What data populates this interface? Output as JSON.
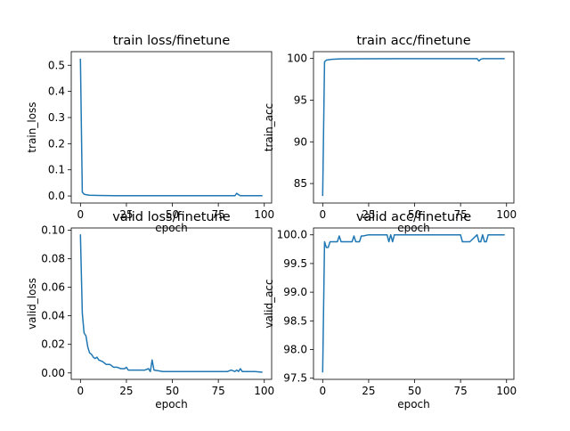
{
  "chart_data": [
    {
      "type": "line",
      "title": "train loss/finetune",
      "xlabel": "epoch",
      "ylabel": "train_loss",
      "xlim": [
        -5,
        104
      ],
      "ylim": [
        -0.027,
        0.552
      ],
      "xticks": [
        0,
        25,
        50,
        75,
        100
      ],
      "yticks": [
        0.0,
        0.1,
        0.2,
        0.3,
        0.4,
        0.5
      ],
      "ytick_labels": [
        "0.0",
        "0.1",
        "0.2",
        "0.3",
        "0.4",
        "0.5"
      ],
      "series": [
        {
          "name": "train_loss",
          "color": "#1f77b4",
          "x": [
            0,
            1,
            2,
            3,
            5,
            10,
            20,
            40,
            60,
            80,
            84,
            85,
            86,
            87,
            90,
            99
          ],
          "y": [
            0.525,
            0.015,
            0.007,
            0.005,
            0.003,
            0.002,
            0.001,
            0.001,
            0.001,
            0.001,
            0.001,
            0.01,
            0.005,
            0.001,
            0.001,
            0.001
          ]
        }
      ]
    },
    {
      "type": "line",
      "title": "train acc/finetune",
      "xlabel": "epoch",
      "ylabel": "train_acc",
      "xlim": [
        -5,
        104
      ],
      "ylim": [
        82.66,
        100.82
      ],
      "xticks": [
        0,
        25,
        50,
        75,
        100
      ],
      "yticks": [
        85,
        90,
        95,
        100
      ],
      "ytick_labels": [
        "85",
        "90",
        "95",
        "100"
      ],
      "series": [
        {
          "name": "train_acc",
          "color": "#1f77b4",
          "x": [
            0,
            1,
            2,
            3,
            5,
            10,
            20,
            40,
            60,
            80,
            84,
            85,
            86,
            87,
            90,
            99
          ],
          "y": [
            83.5,
            99.6,
            99.8,
            99.85,
            99.9,
            99.95,
            99.97,
            99.98,
            99.98,
            99.98,
            99.98,
            99.7,
            99.9,
            99.98,
            99.98,
            99.98
          ]
        }
      ]
    },
    {
      "type": "line",
      "title": "valid loss/finetune",
      "xlabel": "epoch",
      "ylabel": "valid_loss",
      "xlim": [
        -5,
        104
      ],
      "ylim": [
        -0.0045,
        0.1015
      ],
      "xticks": [
        0,
        25,
        50,
        75,
        100
      ],
      "yticks": [
        0.0,
        0.02,
        0.04,
        0.06,
        0.08,
        0.1
      ],
      "ytick_labels": [
        "0.00",
        "0.02",
        "0.04",
        "0.06",
        "0.08",
        "0.10"
      ],
      "series": [
        {
          "name": "valid_loss",
          "color": "#1f77b4",
          "x": [
            0,
            1,
            2,
            3,
            4,
            5,
            6,
            7,
            8,
            9,
            10,
            12,
            14,
            16,
            18,
            20,
            22,
            24,
            25,
            26,
            28,
            30,
            35,
            37,
            38,
            39,
            40,
            45,
            50,
            60,
            70,
            75,
            80,
            82,
            84,
            85,
            86,
            87,
            88,
            90,
            95,
            99
          ],
          "y": [
            0.097,
            0.042,
            0.028,
            0.026,
            0.018,
            0.014,
            0.013,
            0.011,
            0.01,
            0.011,
            0.009,
            0.008,
            0.006,
            0.006,
            0.004,
            0.004,
            0.003,
            0.003,
            0.004,
            0.002,
            0.002,
            0.002,
            0.002,
            0.003,
            0.001,
            0.009,
            0.002,
            0.001,
            0.001,
            0.001,
            0.001,
            0.001,
            0.001,
            0.002,
            0.001,
            0.002,
            0.001,
            0.003,
            0.001,
            0.001,
            0.001,
            0.0005
          ]
        }
      ]
    },
    {
      "type": "line",
      "title": "valid acc/finetune",
      "xlabel": "epoch",
      "ylabel": "valid_acc",
      "xlim": [
        -5,
        104
      ],
      "ylim": [
        97.48,
        100.12
      ],
      "xticks": [
        0,
        25,
        50,
        75,
        100
      ],
      "yticks": [
        97.5,
        98.0,
        98.5,
        99.0,
        99.5,
        100.0
      ],
      "ytick_labels": [
        "97.5",
        "98.0",
        "98.5",
        "99.0",
        "99.5",
        "100.0"
      ],
      "series": [
        {
          "name": "valid_acc",
          "color": "#1f77b4",
          "x": [
            0,
            1,
            2,
            3,
            4,
            5,
            6,
            7,
            8,
            9,
            10,
            15,
            16,
            17,
            18,
            20,
            21,
            22,
            25,
            35,
            36,
            37,
            38,
            39,
            40,
            75,
            76,
            77,
            80,
            84,
            85,
            86,
            87,
            88,
            89,
            90,
            99
          ],
          "y": [
            97.6,
            99.88,
            99.78,
            99.78,
            99.88,
            99.88,
            99.88,
            99.88,
            99.88,
            99.98,
            99.88,
            99.88,
            99.88,
            99.98,
            99.88,
            99.88,
            99.98,
            99.98,
            100.0,
            100.0,
            99.88,
            100.0,
            99.88,
            100.0,
            100.0,
            100.0,
            99.88,
            99.88,
            99.88,
            100.0,
            99.88,
            99.88,
            100.0,
            99.88,
            99.88,
            100.0,
            100.0
          ]
        }
      ]
    }
  ]
}
